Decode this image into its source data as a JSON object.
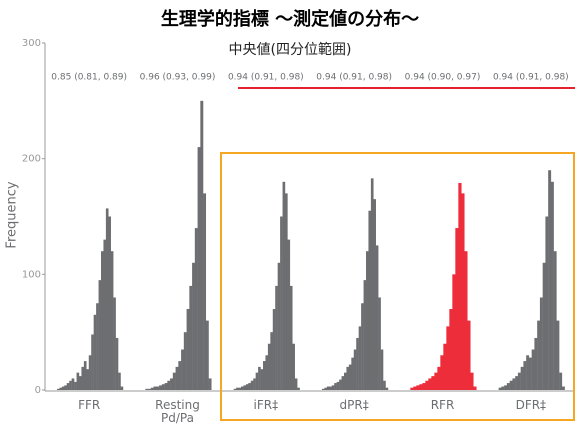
{
  "chart_data": {
    "type": "histogram",
    "title": "生理学的指標 〜測定値の分布〜",
    "subtitle": "中央値(四分位範囲)",
    "ylabel": "Frequency",
    "ylim": [
      0,
      300
    ],
    "yticks": [
      0,
      100,
      200,
      300
    ],
    "series": [
      {
        "name": "FFR",
        "annotation": "0.85 (0.81, 0.89)",
        "color": "#6d6e71",
        "values": [
          1,
          2,
          3,
          4,
          6,
          8,
          10,
          7,
          15,
          12,
          20,
          25,
          18,
          30,
          48,
          65,
          75,
          95,
          120,
          130,
          157,
          150,
          120,
          80,
          45,
          15,
          3
        ]
      },
      {
        "name": "Resting Pd/Pa",
        "annotation": "0.96 (0.93, 0.99)",
        "color": "#6d6e71",
        "values": [
          1,
          1,
          2,
          3,
          3,
          4,
          5,
          6,
          8,
          10,
          15,
          20,
          25,
          35,
          50,
          70,
          90,
          110,
          140,
          210,
          250,
          170,
          60,
          10
        ]
      },
      {
        "name": "iFR‡",
        "annotation": "0.94 (0.91, 0.98)",
        "color": "#6d6e71",
        "values": [
          1,
          2,
          2,
          3,
          4,
          5,
          6,
          8,
          10,
          15,
          20,
          18,
          25,
          30,
          40,
          50,
          70,
          90,
          110,
          150,
          180,
          170,
          130,
          90,
          40,
          10,
          2
        ]
      },
      {
        "name": "dPR‡",
        "annotation": "0.94 (0.91, 0.98)",
        "color": "#6d6e71",
        "values": [
          1,
          2,
          3,
          3,
          4,
          6,
          7,
          9,
          12,
          15,
          20,
          22,
          28,
          35,
          45,
          55,
          75,
          95,
          120,
          155,
          183,
          165,
          125,
          80,
          35,
          8,
          2
        ]
      },
      {
        "name": "RFR",
        "annotation": "0.94 (0.90, 0.97)",
        "color": "#ee2d3a",
        "values": [
          2,
          3,
          4,
          5,
          6,
          8,
          10,
          12,
          15,
          20,
          30,
          40,
          55,
          70,
          100,
          140,
          179,
          170,
          120,
          60,
          15,
          3
        ]
      },
      {
        "name": "DFR‡",
        "annotation": "0.94 (0.91, 0.98)",
        "color": "#6d6e71",
        "values": [
          2,
          3,
          4,
          6,
          8,
          10,
          12,
          15,
          20,
          25,
          30,
          28,
          35,
          45,
          60,
          80,
          110,
          150,
          190,
          180,
          120,
          60,
          15,
          3
        ]
      }
    ]
  }
}
